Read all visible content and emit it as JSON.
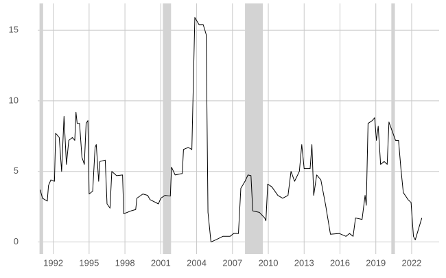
{
  "chart_data": {
    "type": "line",
    "x": [
      1990.9,
      1991.1,
      1991.5,
      1991.6,
      1991.8,
      1992.1,
      1992.2,
      1992.5,
      1992.7,
      1992.9,
      1993.1,
      1993.3,
      1993.6,
      1993.8,
      1993.9,
      1994.0,
      1994.2,
      1994.4,
      1994.6,
      1994.75,
      1994.9,
      1995.0,
      1995.3,
      1995.5,
      1995.6,
      1995.8,
      1995.9,
      1996.35,
      1996.5,
      1996.75,
      1996.9,
      1997.3,
      1997.8,
      1997.9,
      1998.5,
      1998.9,
      1999.0,
      1999.5,
      1999.9,
      2000.1,
      2000.8,
      2001.0,
      2001.35,
      2001.8,
      2001.9,
      2002.2,
      2002.8,
      2002.9,
      2003.3,
      2003.6,
      2003.85,
      2004.2,
      2004.55,
      2004.8,
      2004.95,
      2005.2,
      2005.6,
      2006.2,
      2006.8,
      2007.1,
      2007.5,
      2007.7,
      2008.05,
      2008.3,
      2008.55,
      2008.7,
      2009.25,
      2009.7,
      2009.8,
      2009.95,
      2010.3,
      2010.8,
      2011.2,
      2011.65,
      2011.9,
      2012.2,
      2012.6,
      2012.8,
      2013.0,
      2013.5,
      2013.65,
      2013.8,
      2014.05,
      2014.4,
      2014.8,
      2015.2,
      2015.95,
      2016.5,
      2016.8,
      2017.1,
      2017.3,
      2017.85,
      2018.1,
      2018.2,
      2018.35,
      2018.7,
      2018.9,
      2019.05,
      2019.2,
      2019.4,
      2019.7,
      2019.95,
      2020.1,
      2020.35,
      2020.65,
      2020.9,
      2021.1,
      2021.3,
      2021.7,
      2021.95,
      2022.15,
      2022.3,
      2022.85
    ],
    "series": [
      {
        "color": "#000000",
        "values": [
          3.7,
          3.1,
          2.9,
          4.0,
          4.4,
          4.3,
          7.7,
          7.4,
          5.0,
          8.9,
          5.5,
          7.2,
          7.4,
          7.2,
          9.2,
          8.4,
          8.4,
          6.0,
          5.5,
          8.4,
          8.6,
          3.4,
          3.6,
          6.7,
          6.9,
          4.3,
          5.7,
          5.8,
          2.7,
          2.4,
          5.0,
          4.7,
          4.75,
          2.0,
          2.2,
          2.3,
          3.1,
          3.4,
          3.3,
          3.0,
          2.7,
          3.1,
          3.3,
          3.25,
          5.3,
          4.75,
          4.85,
          6.55,
          6.7,
          6.55,
          15.9,
          15.4,
          15.4,
          14.7,
          2.1,
          0.0,
          0.15,
          0.4,
          0.4,
          0.6,
          0.6,
          3.8,
          4.3,
          4.75,
          4.7,
          2.2,
          2.1,
          1.7,
          1.5,
          4.1,
          3.9,
          3.3,
          3.1,
          3.3,
          5.0,
          4.3,
          5.0,
          6.9,
          5.2,
          5.2,
          6.9,
          3.3,
          4.75,
          4.4,
          2.6,
          0.55,
          0.6,
          0.4,
          0.6,
          0.4,
          1.7,
          1.6,
          3.3,
          2.6,
          8.4,
          8.6,
          8.8,
          7.2,
          8.2,
          5.5,
          5.7,
          5.5,
          8.5,
          7.9,
          7.2,
          7.2,
          5.2,
          3.5,
          3.0,
          2.8,
          0.4,
          0.15,
          1.7
        ]
      }
    ],
    "shaded_periods": [
      [
        1990.85,
        1991.15
      ],
      [
        2001.17,
        2001.86
      ],
      [
        2008.05,
        2009.54
      ],
      [
        2020.3,
        2020.6
      ]
    ],
    "shade_color": "#d3d3d3",
    "xlim": [
      1990.7,
      2024.3
    ],
    "xticks": [
      1992,
      1995,
      1998,
      2001,
      2004,
      2007,
      2010,
      2013,
      2016,
      2019,
      2022
    ],
    "ylim": [
      -0.85,
      16.9
    ],
    "yticks": [
      0,
      5,
      10,
      15
    ],
    "grid": true
  }
}
